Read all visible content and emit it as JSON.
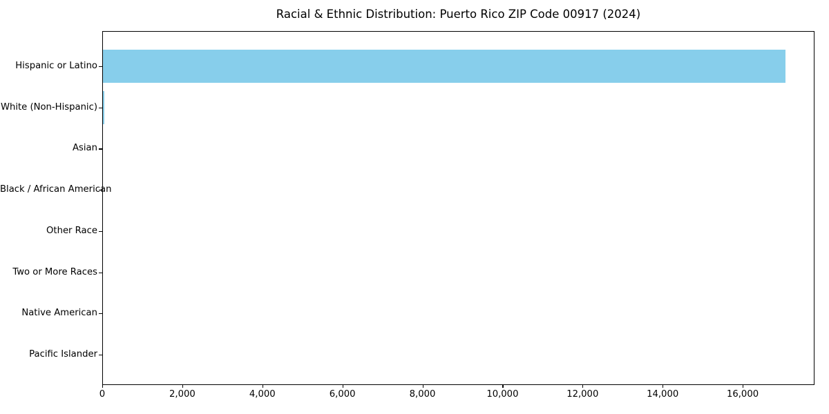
{
  "title": "Racial & Ethnic Distribution: Puerto Rico ZIP Code 00917 (2024)",
  "chart_data": {
    "type": "bar",
    "orientation": "horizontal",
    "title": "Racial & Ethnic Distribution: Puerto Rico ZIP Code 00917 (2024)",
    "categories": [
      "Hispanic or Latino",
      "White (Non-Hispanic)",
      "Asian",
      "Black / African American",
      "Other Race",
      "Two or More Races",
      "Native American",
      "Pacific Islander"
    ],
    "values": [
      17060,
      40,
      0,
      0,
      0,
      0,
      0,
      0
    ],
    "xlabel": "",
    "ylabel": "",
    "xlim": [
      0,
      17777
    ],
    "xticks": [
      0,
      2000,
      4000,
      6000,
      8000,
      10000,
      12000,
      14000,
      16000
    ],
    "xtick_labels": [
      "0",
      "2,000",
      "4,000",
      "6,000",
      "8,000",
      "10,000",
      "12,000",
      "14,000",
      "16,000"
    ],
    "grid": false,
    "legend_position": "none",
    "bar_color": "#87CEEB",
    "background_color": "#ffffff",
    "text_color": "#000000",
    "axis_color": "#000000"
  }
}
